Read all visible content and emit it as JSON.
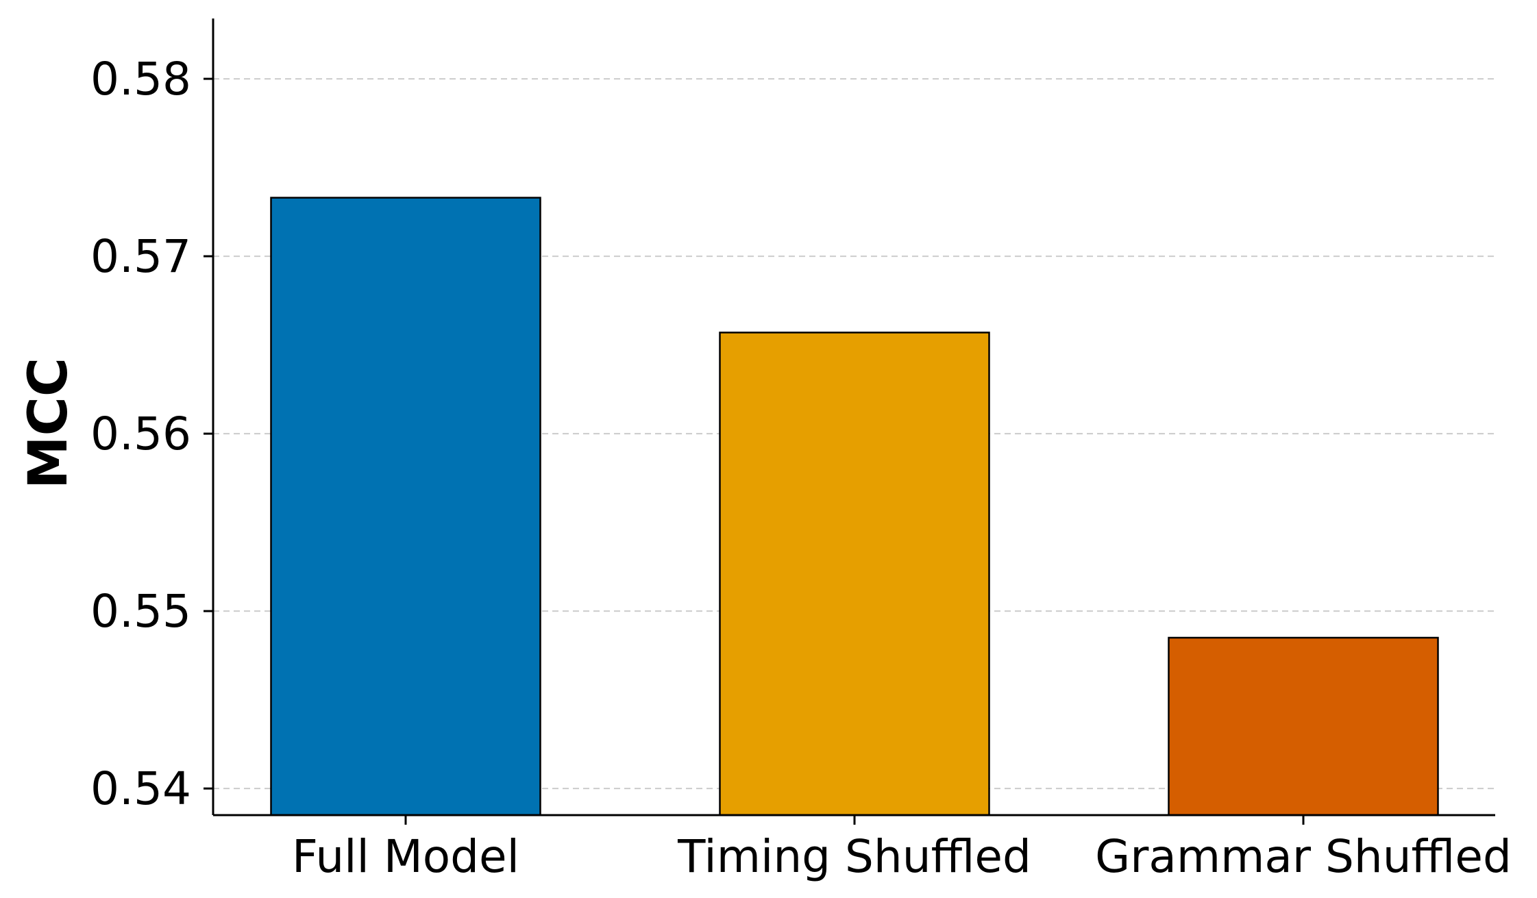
{
  "chart_data": {
    "type": "bar",
    "title": "",
    "xlabel": "",
    "ylabel": "MCC",
    "categories": [
      "Full Model",
      "Timing Shuffled",
      "Grammar Shuffled"
    ],
    "values": [
      0.5733,
      0.5657,
      0.5485
    ],
    "colors": [
      "#0072B2",
      "#E69F00",
      "#D55E00"
    ],
    "ylim": [
      0.5385,
      0.5834
    ],
    "yticks": [
      0.54,
      0.55,
      0.56,
      0.57,
      0.58
    ],
    "ytick_labels": [
      "0.54",
      "0.55",
      "0.56",
      "0.57",
      "0.58"
    ],
    "grid": "y-dashed"
  }
}
